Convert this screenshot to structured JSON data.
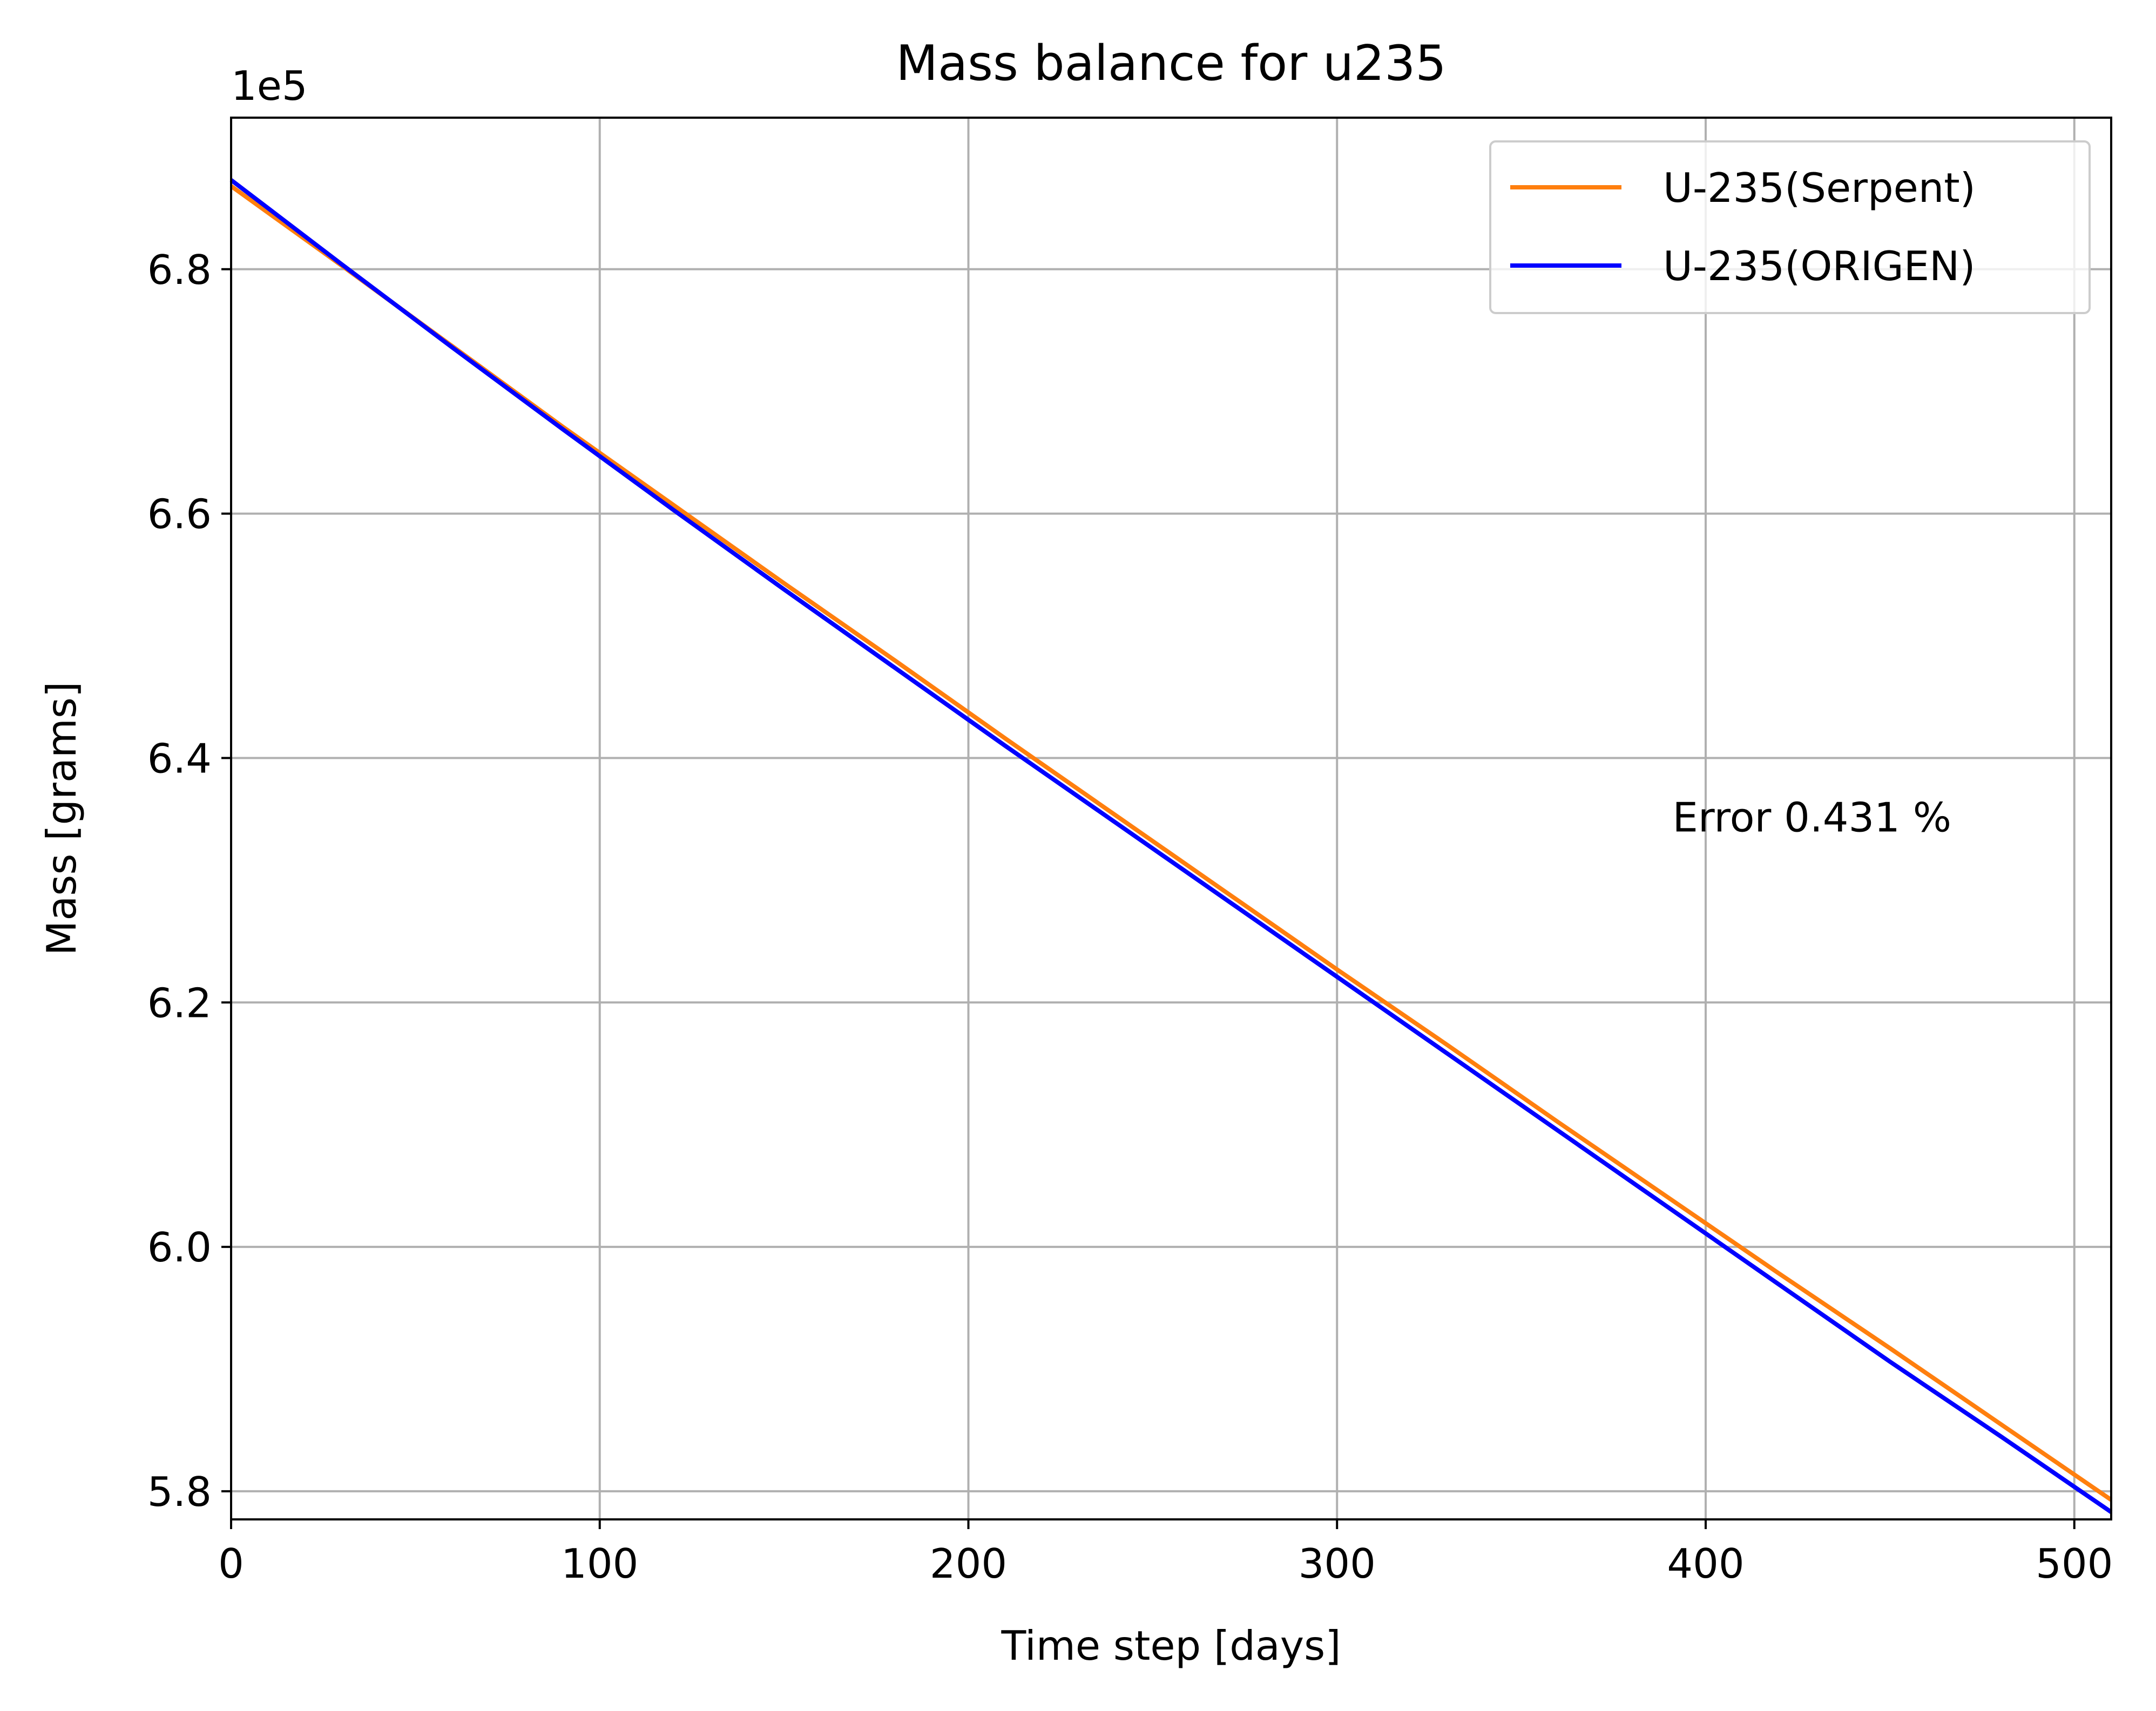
{
  "chart_data": {
    "type": "line",
    "title": "Mass balance for u235",
    "xlabel": "Time step [days]",
    "ylabel": "Mass [grams]",
    "y_offset_label": "1e5",
    "xlim": [
      0,
      510
    ],
    "ylim": [
      5.777,
      6.924
    ],
    "y_scale_factor": 100000,
    "grid": true,
    "legend_position": "top-right",
    "x_ticks": [
      0,
      100,
      200,
      300,
      400,
      500
    ],
    "x_tick_labels": [
      "0",
      "100",
      "200",
      "300",
      "400",
      "500"
    ],
    "y_ticks": [
      5.8,
      6.0,
      6.2,
      6.4,
      6.6,
      6.8
    ],
    "y_tick_labels": [
      "5.8",
      "6.0",
      "6.2",
      "6.4",
      "6.6",
      "6.8"
    ],
    "series": [
      {
        "name": "U-235(Serpent)",
        "color": "#ff7f0e",
        "x": [
          0,
          30,
          60,
          90,
          120,
          150,
          180,
          210,
          240,
          270,
          300,
          330,
          360,
          390,
          420,
          450,
          480,
          510
        ],
        "y": [
          6.868,
          6.803,
          6.737,
          6.671,
          6.607,
          6.543,
          6.48,
          6.416,
          6.353,
          6.29,
          6.227,
          6.165,
          6.102,
          6.04,
          5.978,
          5.917,
          5.855,
          5.793
        ]
      },
      {
        "name": "U-235(ORIGEN)",
        "color": "#0000ff",
        "x": [
          0,
          30,
          60,
          90,
          120,
          150,
          180,
          210,
          240,
          270,
          300,
          330,
          360,
          390,
          420,
          450,
          480,
          510
        ],
        "y": [
          6.873,
          6.804,
          6.736,
          6.669,
          6.603,
          6.538,
          6.474,
          6.41,
          6.347,
          6.284,
          6.221,
          6.158,
          6.095,
          6.032,
          5.969,
          5.906,
          5.845,
          5.783
        ]
      }
    ],
    "annotations": [
      {
        "text": "Error  0.431 %",
        "x": 391,
        "y": 6.34
      }
    ]
  }
}
